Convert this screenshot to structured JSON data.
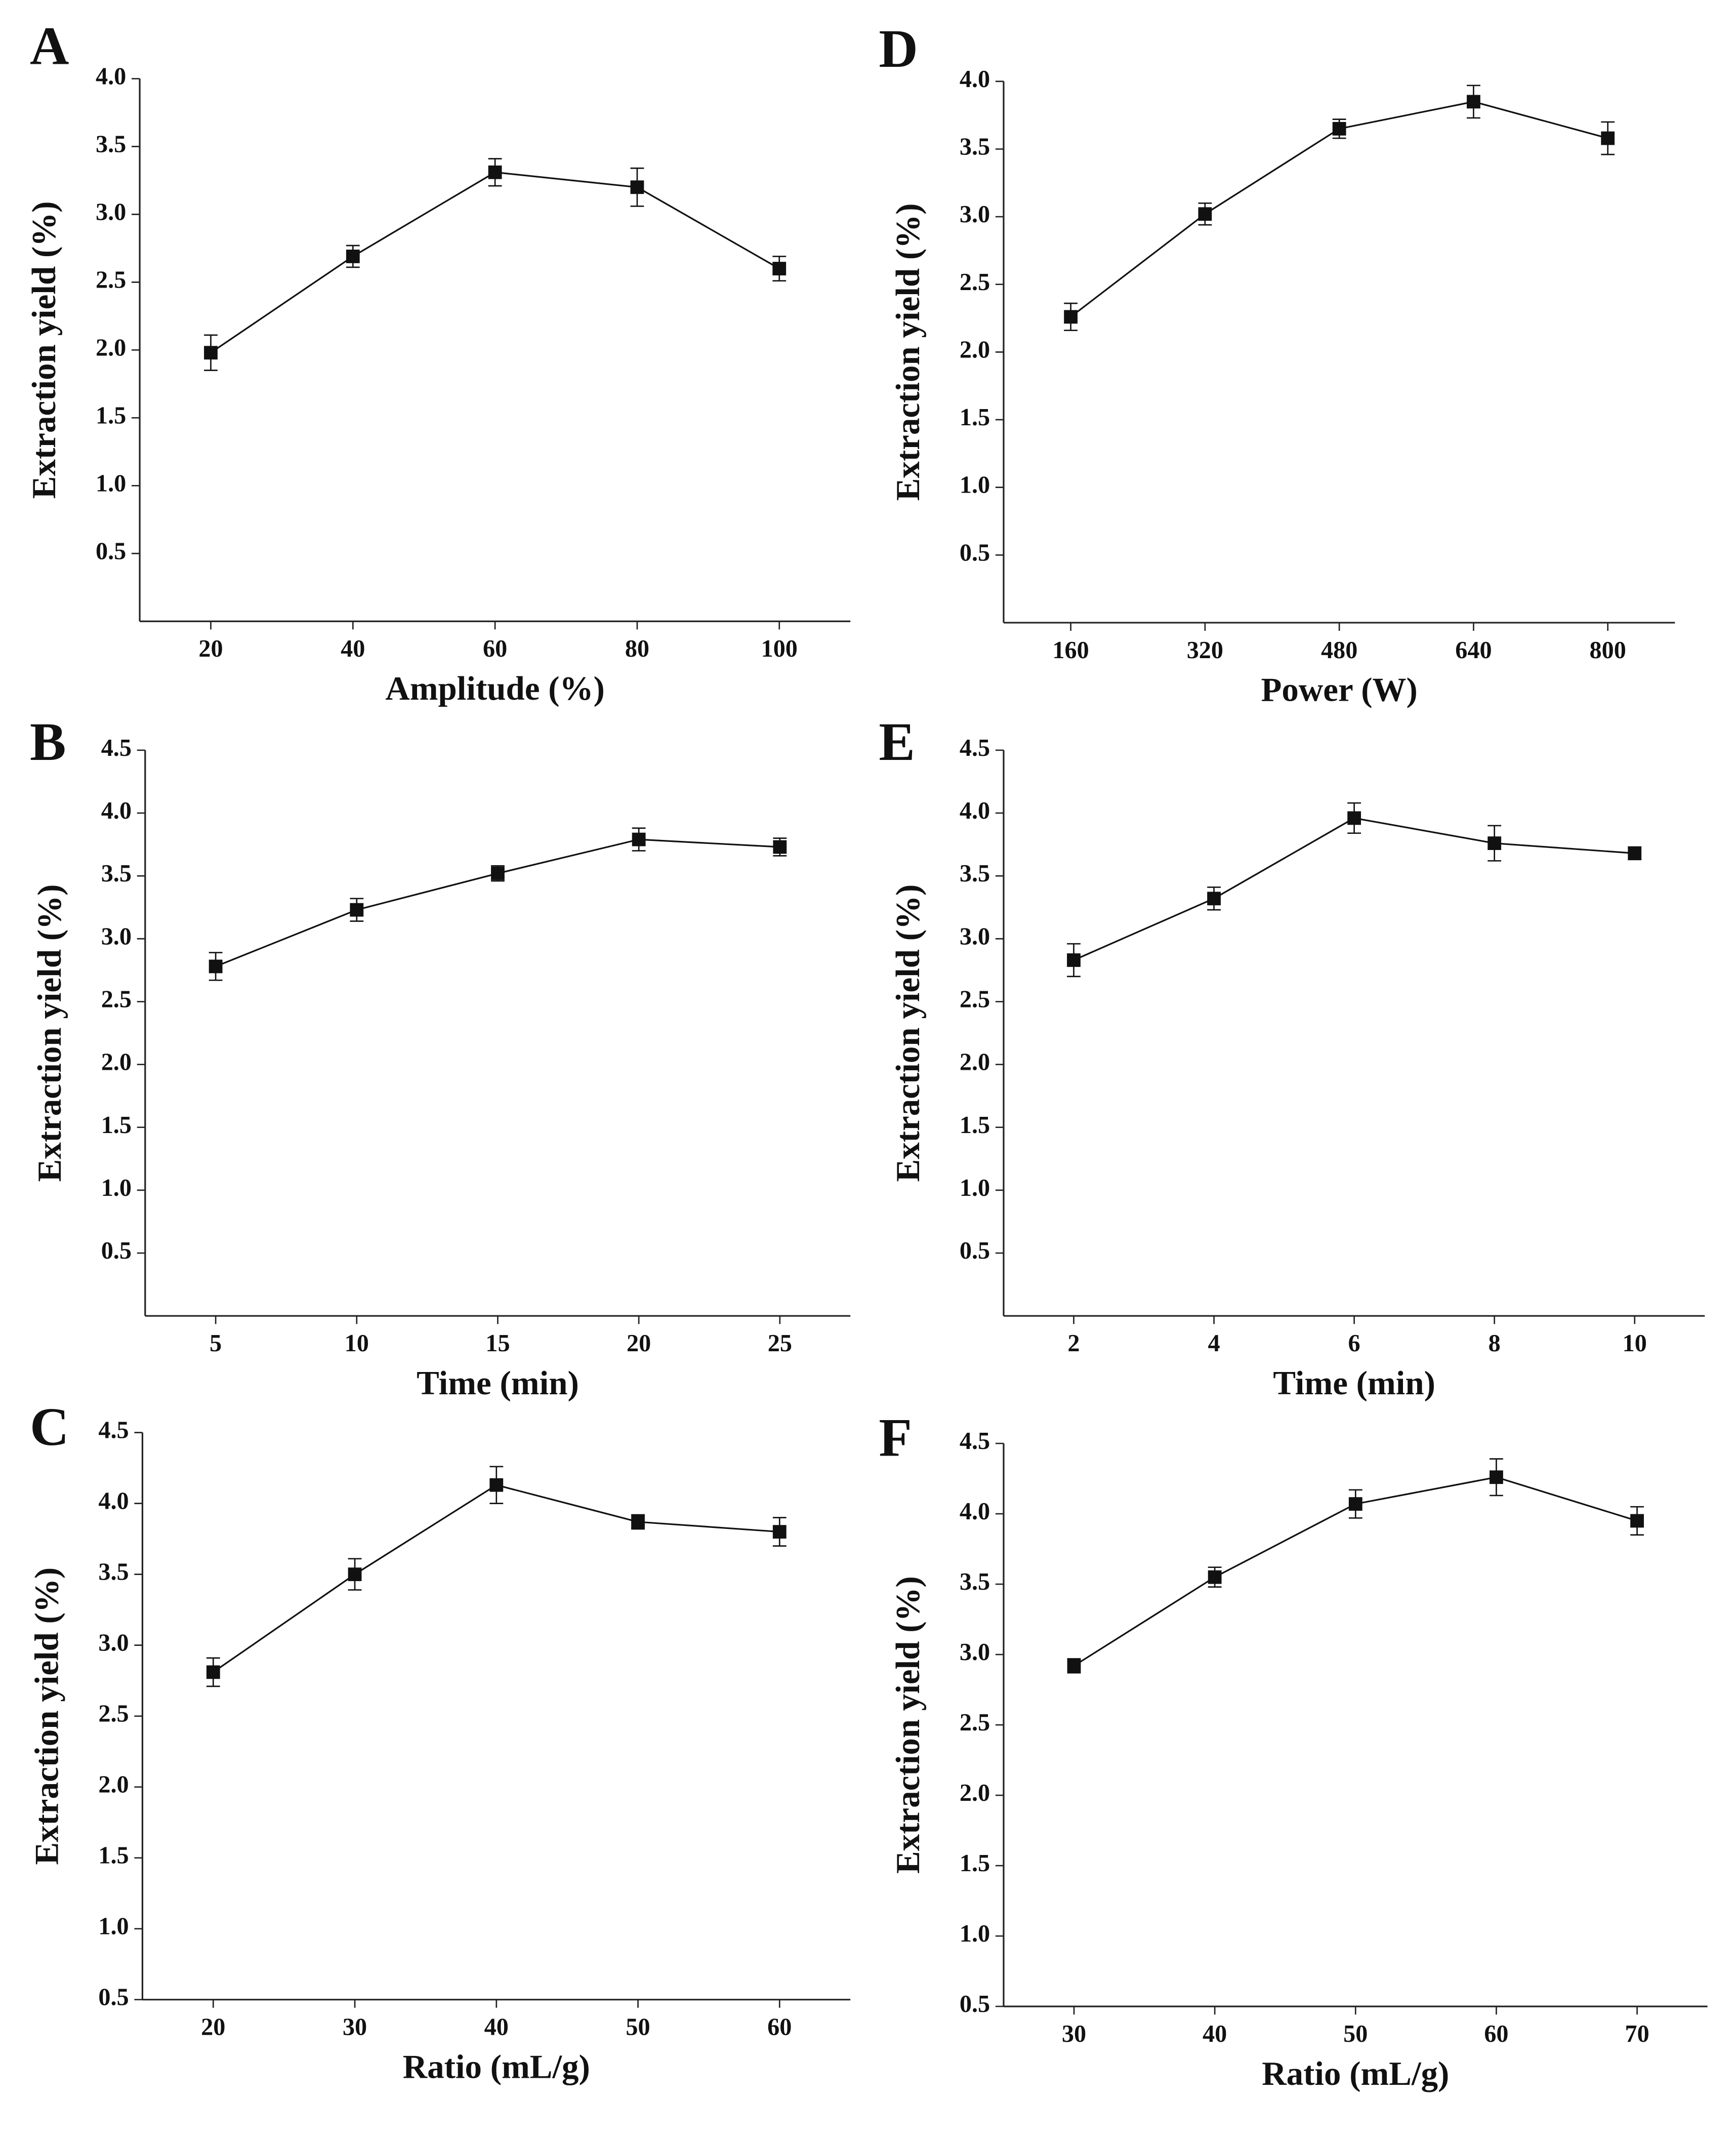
{
  "chart_data": [
    {
      "type": "line",
      "panel": "A",
      "xlabel": "Amplitude (%)",
      "ylabel": "Extraction yield (%)",
      "x": [
        20,
        40,
        60,
        80,
        100
      ],
      "values": [
        1.98,
        2.69,
        3.31,
        3.2,
        2.6
      ],
      "errors": [
        0.13,
        0.08,
        0.1,
        0.14,
        0.09
      ],
      "xlim": [
        10,
        110
      ],
      "xticks": [
        20,
        40,
        60,
        80,
        100
      ],
      "ylim": [
        0,
        4
      ],
      "yticks": [
        0.5,
        {
          "value": 1,
          "label": "1.0"
        },
        1.5,
        {
          "value": 2,
          "label": "2.0"
        },
        2.5,
        {
          "value": 3,
          "label": "3.0"
        },
        3.5,
        {
          "value": 4,
          "label": "4.0"
        }
      ],
      "color": "#111111"
    },
    {
      "type": "line",
      "panel": "B",
      "xlabel": "Time (min)",
      "ylabel": "Extraction yield (%)",
      "x": [
        5,
        10,
        15,
        20,
        25
      ],
      "values": [
        2.78,
        3.23,
        3.52,
        3.79,
        3.73
      ],
      "errors": [
        0.11,
        0.09,
        0.06,
        0.09,
        0.07
      ],
      "xlim": [
        2.5,
        27.5
      ],
      "xticks": [
        5,
        10,
        15,
        20,
        25
      ],
      "ylim": [
        0,
        4.5
      ],
      "yticks": [
        0.5,
        {
          "value": 1,
          "label": "1.0"
        },
        1.5,
        {
          "value": 2,
          "label": "2.0"
        },
        2.5,
        {
          "value": 3,
          "label": "3.0"
        },
        3.5,
        {
          "value": 4,
          "label": "4.0"
        },
        4.5
      ],
      "color": "#111111"
    },
    {
      "type": "line",
      "panel": "C",
      "xlabel": "Ratio (mL/g)",
      "ylabel": "Extraction yield (%)",
      "x": [
        20,
        30,
        40,
        50,
        60
      ],
      "values": [
        2.81,
        3.5,
        4.13,
        3.87,
        3.8
      ],
      "errors": [
        0.1,
        0.11,
        0.13,
        0.05,
        0.1
      ],
      "xlim": [
        15,
        65
      ],
      "xticks": [
        20,
        30,
        40,
        50,
        60
      ],
      "ylim": [
        0.5,
        4.5
      ],
      "yticks": [
        0.5,
        {
          "value": 1,
          "label": "1.0"
        },
        1.5,
        {
          "value": 2,
          "label": "2.0"
        },
        2.5,
        {
          "value": 3,
          "label": "3.0"
        },
        3.5,
        {
          "value": 4,
          "label": "4.0"
        },
        4.5
      ],
      "color": "#111111"
    },
    {
      "type": "line",
      "panel": "D",
      "xlabel": "Power (W)",
      "ylabel": "Extraction yield (%)",
      "x": [
        160,
        320,
        480,
        640,
        800
      ],
      "values": [
        2.26,
        3.02,
        3.65,
        3.85,
        3.58
      ],
      "errors": [
        0.1,
        0.08,
        0.07,
        0.12,
        0.12
      ],
      "xlim": [
        80,
        880
      ],
      "xticks": [
        160,
        320,
        480,
        640,
        800
      ],
      "ylim": [
        0,
        4
      ],
      "yticks": [
        0.5,
        {
          "value": 1,
          "label": "1.0"
        },
        1.5,
        {
          "value": 2,
          "label": "2.0"
        },
        2.5,
        {
          "value": 3,
          "label": "3.0"
        },
        3.5,
        {
          "value": 4,
          "label": "4.0"
        }
      ],
      "color": "#111111"
    },
    {
      "type": "line",
      "panel": "E",
      "xlabel": "Time (min)",
      "ylabel": "Extraction yield (%)",
      "x": [
        2,
        4,
        6,
        8,
        10
      ],
      "values": [
        2.83,
        3.32,
        3.96,
        3.76,
        3.68
      ],
      "errors": [
        0.13,
        0.09,
        0.12,
        0.14,
        0.05
      ],
      "xlim": [
        1,
        11
      ],
      "xticks": [
        2,
        4,
        6,
        8,
        10
      ],
      "ylim": [
        0,
        4.5
      ],
      "yticks": [
        0.5,
        {
          "value": 1,
          "label": "1.0"
        },
        1.5,
        {
          "value": 2,
          "label": "2.0"
        },
        2.5,
        {
          "value": 3,
          "label": "3.0"
        },
        3.5,
        {
          "value": 4,
          "label": "4.0"
        },
        4.5
      ],
      "color": "#111111"
    },
    {
      "type": "line",
      "panel": "F",
      "xlabel": "Ratio (mL/g)",
      "ylabel": "Extraction yield (%)",
      "x": [
        30,
        40,
        50,
        60,
        70
      ],
      "values": [
        2.92,
        3.55,
        4.07,
        4.26,
        3.95
      ],
      "errors": [
        0.05,
        0.07,
        0.1,
        0.13,
        0.1
      ],
      "xlim": [
        25,
        75
      ],
      "xticks": [
        30,
        40,
        50,
        60,
        70
      ],
      "ylim": [
        0.5,
        4.5
      ],
      "yticks": [
        0.5,
        {
          "value": 1,
          "label": "1.0"
        },
        1.5,
        {
          "value": 2,
          "label": "2.0"
        },
        2.5,
        {
          "value": 3,
          "label": "3.0"
        },
        3.5,
        {
          "value": 4,
          "label": "4.0"
        },
        4.5
      ],
      "color": "#111111"
    }
  ]
}
